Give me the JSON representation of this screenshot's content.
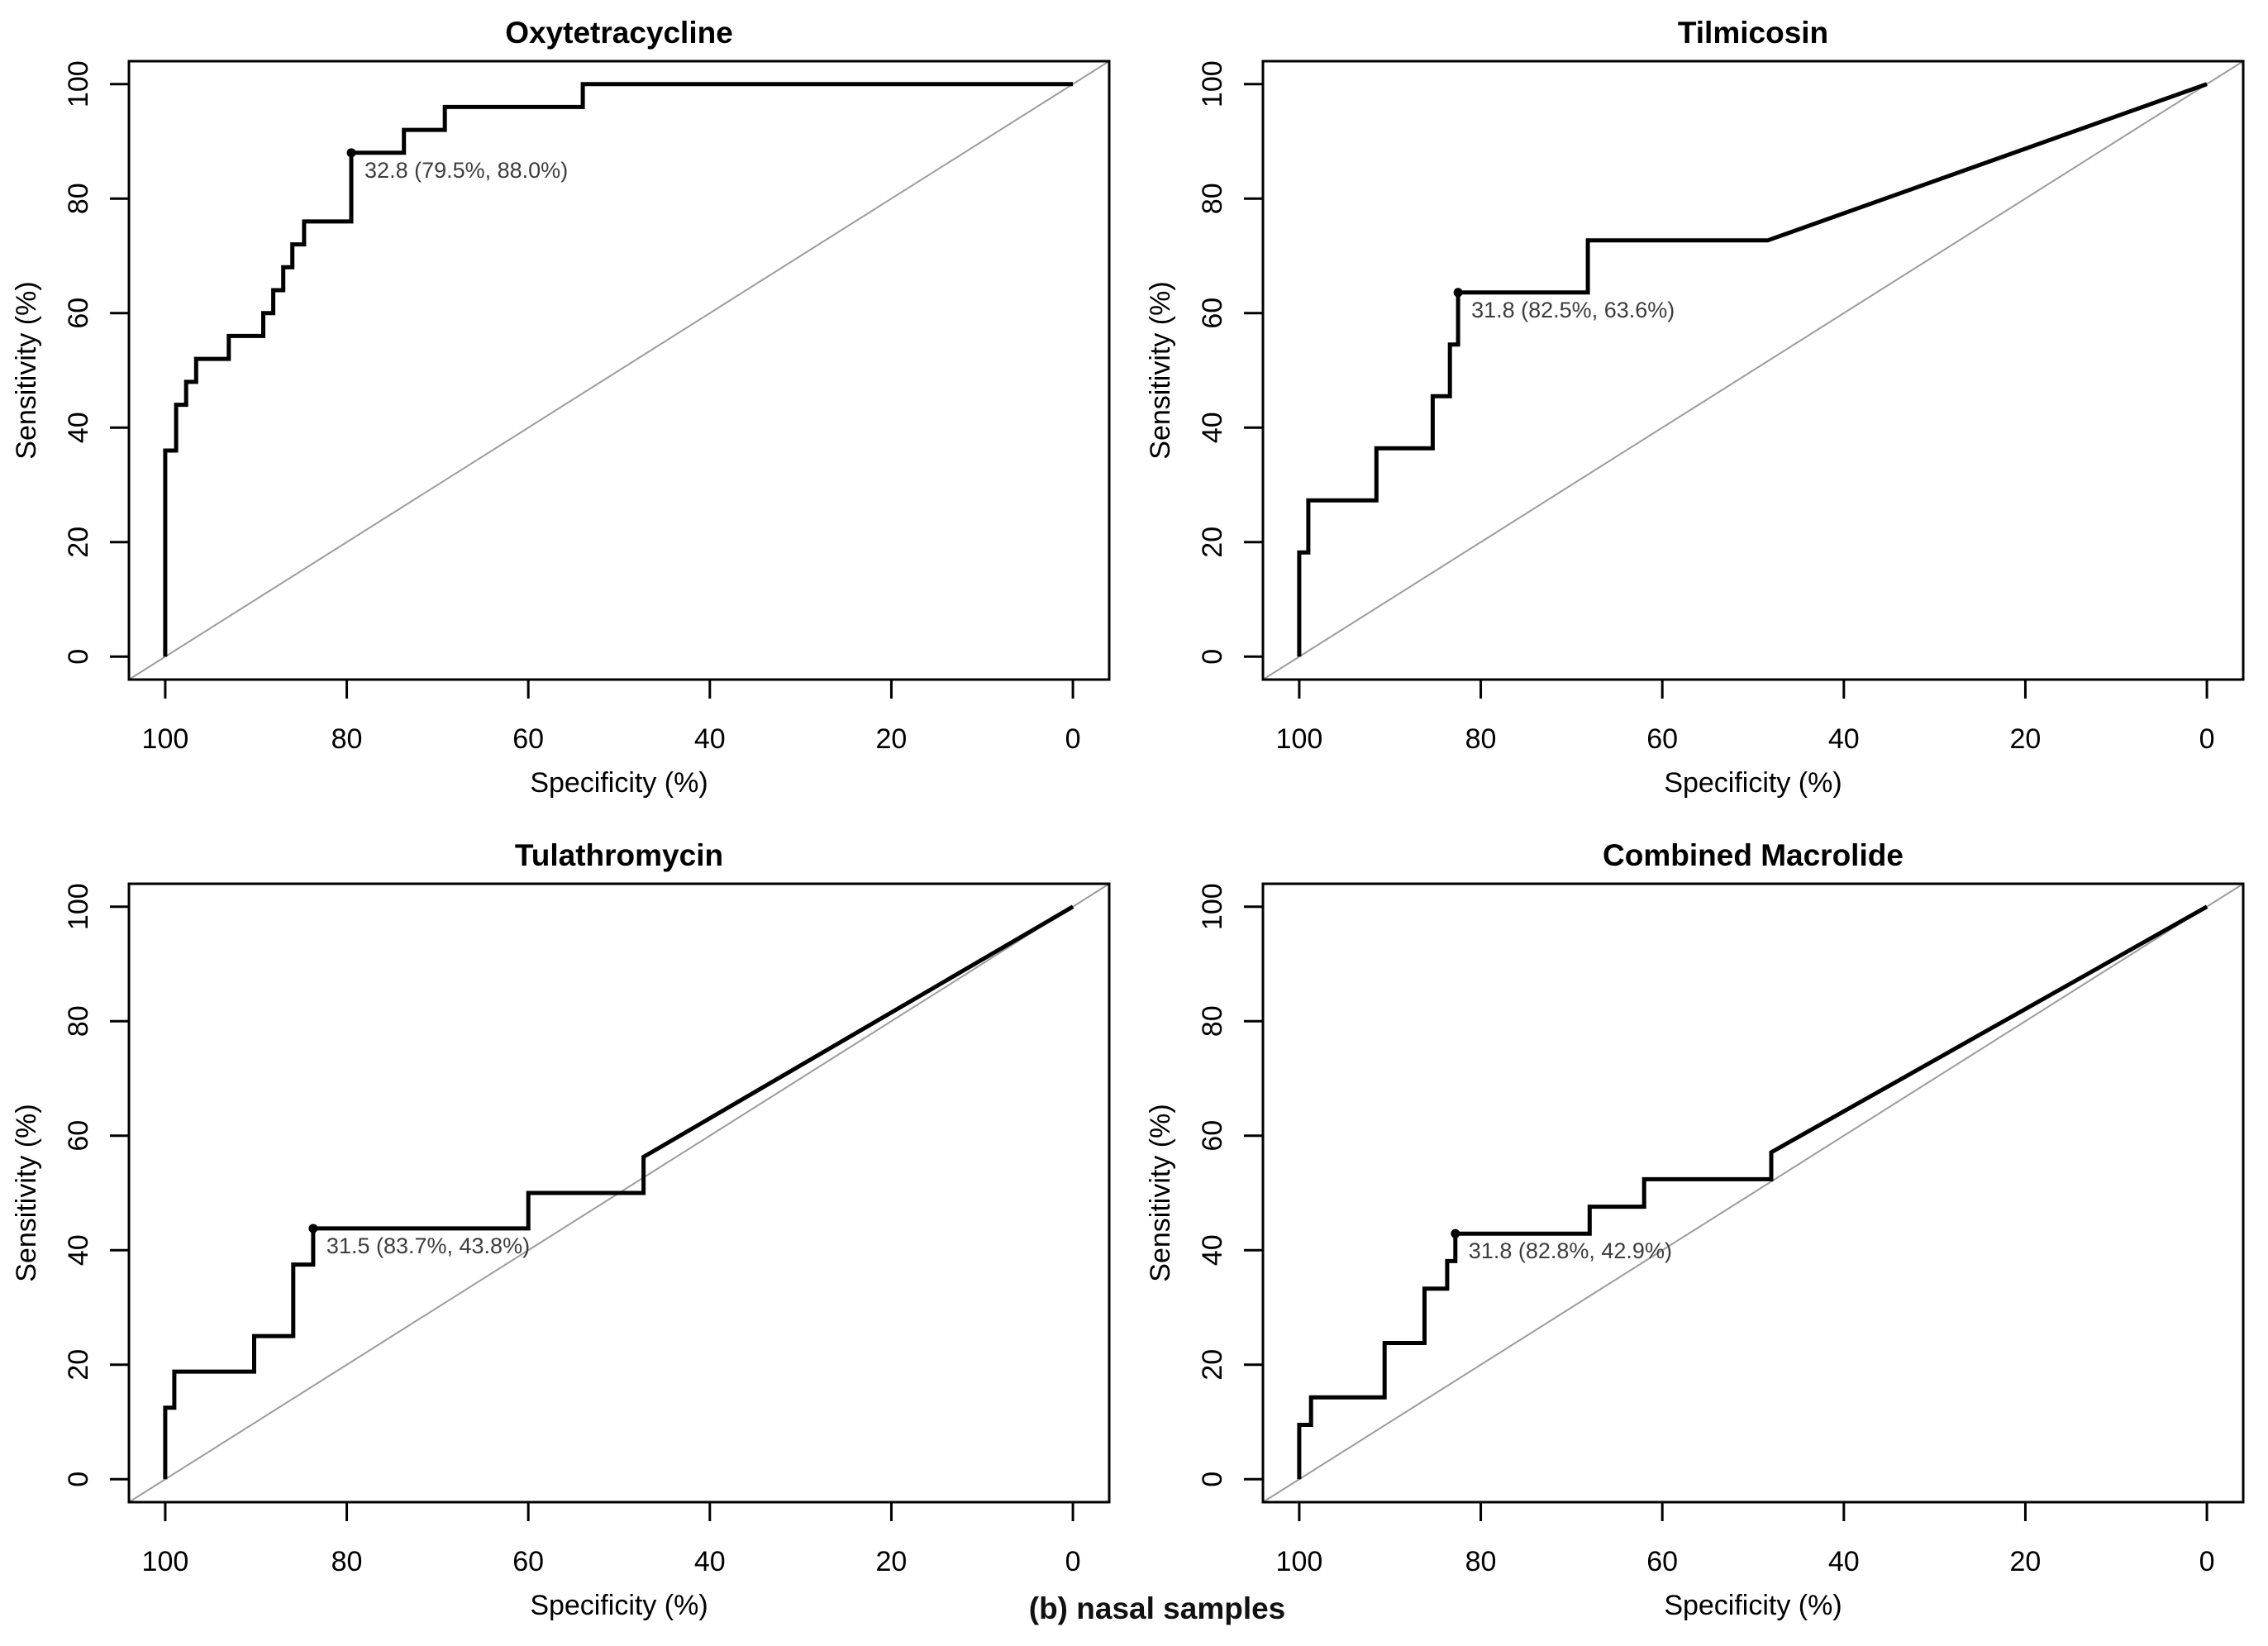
{
  "figure": {
    "caption": "(b) nasal samples",
    "background_color": "#ffffff",
    "curve_color": "#000000",
    "diagonal_color": "#9c9c9c",
    "axis_color": "#000000",
    "text_color": "#000000",
    "annotation_color": "#3d3d3d"
  },
  "chart_data": [
    {
      "type": "line",
      "subtype": "roc-curve",
      "title": "Oxytetracycline",
      "xlabel": "Specificity (%)",
      "ylabel": "Sensitivity (%)",
      "x_ticks": [
        100,
        80,
        60,
        40,
        20,
        0
      ],
      "y_ticks": [
        0,
        20,
        40,
        60,
        80,
        100
      ],
      "xlim": [
        104,
        -4
      ],
      "ylim": [
        -4,
        104
      ],
      "x_reversed": true,
      "grid": false,
      "diagonal_reference": true,
      "best_threshold": {
        "label": "32.8 (79.5%, 88.0%)",
        "threshold": 32.8,
        "specificity_pct": 79.5,
        "sensitivity_pct": 88.0
      },
      "roc_points_spec_sens": [
        [
          100,
          0
        ],
        [
          100,
          36
        ],
        [
          98.8,
          36
        ],
        [
          98.8,
          44
        ],
        [
          97.7,
          44
        ],
        [
          97.7,
          48
        ],
        [
          96.6,
          48
        ],
        [
          96.6,
          52
        ],
        [
          93,
          52
        ],
        [
          93,
          56
        ],
        [
          89.2,
          56
        ],
        [
          89.2,
          60
        ],
        [
          88.1,
          60
        ],
        [
          88.1,
          64
        ],
        [
          87,
          64
        ],
        [
          87,
          68
        ],
        [
          86,
          68
        ],
        [
          86,
          72
        ],
        [
          84.7,
          72
        ],
        [
          84.7,
          76
        ],
        [
          79.5,
          76
        ],
        [
          79.5,
          88
        ],
        [
          73.7,
          88
        ],
        [
          73.7,
          92
        ],
        [
          69.2,
          92
        ],
        [
          69.2,
          96
        ],
        [
          54,
          96
        ],
        [
          54,
          100
        ],
        [
          0,
          100
        ]
      ]
    },
    {
      "type": "line",
      "subtype": "roc-curve",
      "title": "Tilmicosin",
      "xlabel": "Specificity (%)",
      "ylabel": "Sensitivity (%)",
      "x_ticks": [
        100,
        80,
        60,
        40,
        20,
        0
      ],
      "y_ticks": [
        0,
        20,
        40,
        60,
        80,
        100
      ],
      "xlim": [
        104,
        -4
      ],
      "ylim": [
        -4,
        104
      ],
      "x_reversed": true,
      "grid": false,
      "diagonal_reference": true,
      "best_threshold": {
        "label": "31.8 (82.5%, 63.6%)",
        "threshold": 31.8,
        "specificity_pct": 82.5,
        "sensitivity_pct": 63.6
      },
      "roc_points_spec_sens": [
        [
          100,
          0
        ],
        [
          100,
          18.2
        ],
        [
          99,
          18.2
        ],
        [
          99,
          27.3
        ],
        [
          91.5,
          27.3
        ],
        [
          91.5,
          36.4
        ],
        [
          85.3,
          36.4
        ],
        [
          85.3,
          45.5
        ],
        [
          83.4,
          45.5
        ],
        [
          83.4,
          54.5
        ],
        [
          82.5,
          54.5
        ],
        [
          82.5,
          63.6
        ],
        [
          68.2,
          63.6
        ],
        [
          68.2,
          72.7
        ],
        [
          48.4,
          72.7
        ],
        [
          0,
          100
        ]
      ]
    },
    {
      "type": "line",
      "subtype": "roc-curve",
      "title": "Tulathromycin",
      "xlabel": "Specificity (%)",
      "ylabel": "Sensitivity (%)",
      "x_ticks": [
        100,
        80,
        60,
        40,
        20,
        0
      ],
      "y_ticks": [
        0,
        20,
        40,
        60,
        80,
        100
      ],
      "xlim": [
        104,
        -4
      ],
      "ylim": [
        -4,
        104
      ],
      "x_reversed": true,
      "grid": false,
      "diagonal_reference": true,
      "best_threshold": {
        "label": "31.5 (83.7%, 43.8%)",
        "threshold": 31.5,
        "specificity_pct": 83.7,
        "sensitivity_pct": 43.8
      },
      "roc_points_spec_sens": [
        [
          100,
          0
        ],
        [
          100,
          12.5
        ],
        [
          99,
          12.5
        ],
        [
          99,
          18.8
        ],
        [
          90.2,
          18.8
        ],
        [
          90.2,
          25
        ],
        [
          85.9,
          25
        ],
        [
          85.9,
          37.5
        ],
        [
          83.7,
          37.5
        ],
        [
          83.7,
          43.8
        ],
        [
          60,
          43.8
        ],
        [
          60,
          50
        ],
        [
          47.3,
          50
        ],
        [
          47.3,
          56.3
        ],
        [
          0,
          100
        ]
      ]
    },
    {
      "type": "line",
      "subtype": "roc-curve",
      "title": "Combined Macrolide",
      "xlabel": "Specificity (%)",
      "ylabel": "Sensitivity (%)",
      "x_ticks": [
        100,
        80,
        60,
        40,
        20,
        0
      ],
      "y_ticks": [
        0,
        20,
        40,
        60,
        80,
        100
      ],
      "xlim": [
        104,
        -4
      ],
      "ylim": [
        -4,
        104
      ],
      "x_reversed": true,
      "grid": false,
      "diagonal_reference": true,
      "best_threshold": {
        "label": "31.8 (82.8%, 42.9%)",
        "threshold": 31.8,
        "specificity_pct": 82.8,
        "sensitivity_pct": 42.9
      },
      "roc_points_spec_sens": [
        [
          100,
          0
        ],
        [
          100,
          9.5
        ],
        [
          98.7,
          9.5
        ],
        [
          98.7,
          14.3
        ],
        [
          90.6,
          14.3
        ],
        [
          90.6,
          23.8
        ],
        [
          86.2,
          23.8
        ],
        [
          86.2,
          33.3
        ],
        [
          83.7,
          33.3
        ],
        [
          83.7,
          38.1
        ],
        [
          82.8,
          38.1
        ],
        [
          82.8,
          42.9
        ],
        [
          68,
          42.9
        ],
        [
          68,
          47.6
        ],
        [
          62,
          47.6
        ],
        [
          62,
          52.4
        ],
        [
          48,
          52.4
        ],
        [
          48,
          57.1
        ],
        [
          0,
          100
        ]
      ]
    }
  ]
}
